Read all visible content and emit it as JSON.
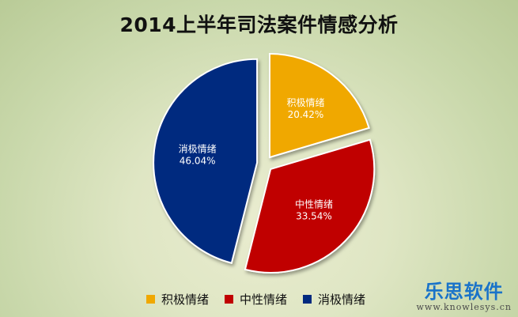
{
  "chart_data": {
    "type": "pie",
    "title": "2014上半年司法案件情感分析",
    "slices": [
      {
        "label": "积极情绪",
        "value": 20.42,
        "value_label": "20.42%",
        "color": "#f0a800"
      },
      {
        "label": "中性情绪",
        "value": 33.54,
        "value_label": "33.54%",
        "color": "#c00000"
      },
      {
        "label": "消极情绪",
        "value": 46.04,
        "value_label": "46.04%",
        "color": "#002a7f"
      }
    ],
    "legend_position": "bottom",
    "exploded": true
  },
  "watermark": {
    "logo": "乐思软件",
    "url": "www.knowlesys.cn"
  }
}
